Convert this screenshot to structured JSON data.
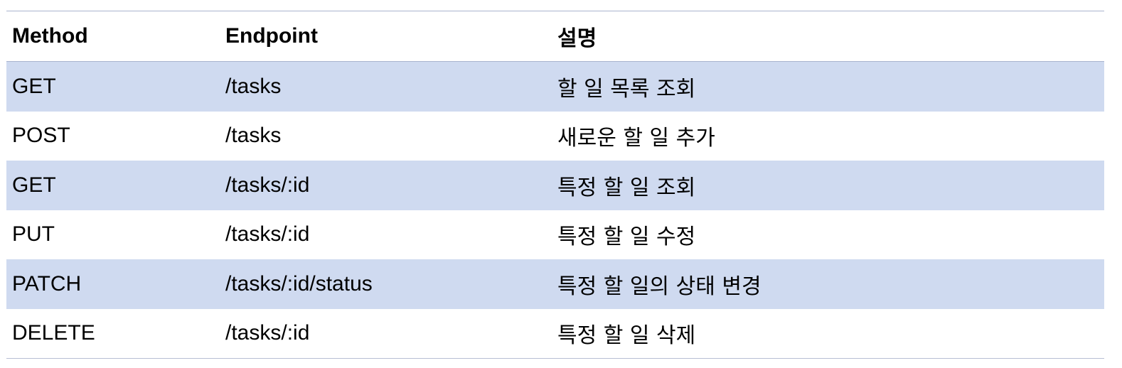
{
  "table": {
    "headers": {
      "method": "Method",
      "endpoint": "Endpoint",
      "description": "설명"
    },
    "rows": [
      {
        "method": "GET",
        "endpoint": "/tasks",
        "description": "할 일 목록 조회"
      },
      {
        "method": "POST",
        "endpoint": "/tasks",
        "description": "새로운 할 일 추가"
      },
      {
        "method": "GET",
        "endpoint": "/tasks/:id",
        "description": "특정 할 일 조회"
      },
      {
        "method": "PUT",
        "endpoint": "/tasks/:id",
        "description": "특정 할 일 수정"
      },
      {
        "method": "PATCH",
        "endpoint": "/tasks/:id/status",
        "description": "특정 할 일의 상태 변경"
      },
      {
        "method": "DELETE",
        "endpoint": "/tasks/:id",
        "description": "특정 할 일 삭제"
      }
    ]
  },
  "colors": {
    "shaded_row": "#cfdaf0",
    "rule": "#a9b4cf"
  }
}
